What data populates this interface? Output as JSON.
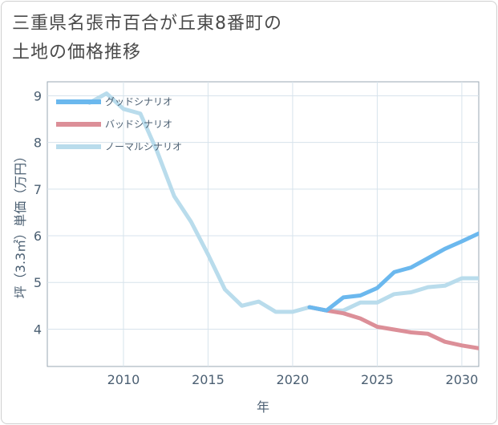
{
  "title": {
    "line1": "三重県名張市百合が丘東8番町の",
    "line2": "土地の価格推移"
  },
  "chart_data": {
    "type": "line",
    "xlabel": "年",
    "ylabel": "坪（3.3㎡）単価（万円）",
    "xlim": [
      2005.5,
      2031
    ],
    "ylim": [
      3.2,
      9.3
    ],
    "x_ticks": [
      2010,
      2015,
      2020,
      2025,
      2030
    ],
    "y_ticks": [
      4,
      5,
      6,
      7,
      8,
      9
    ],
    "grid": true,
    "legend_position": "top-left",
    "series": [
      {
        "name": "グッドシナリオ",
        "color": "#6bb8ee",
        "x": [
          2021,
          2022,
          2023,
          2024,
          2025,
          2026,
          2027,
          2028,
          2029,
          2030,
          2031
        ],
        "values": [
          4.47,
          4.4,
          4.68,
          4.72,
          4.88,
          5.22,
          5.32,
          5.52,
          5.72,
          5.88,
          6.05
        ]
      },
      {
        "name": "バッドシナリオ",
        "color": "#dc8f98",
        "x": [
          2021,
          2022,
          2023,
          2024,
          2025,
          2026,
          2027,
          2028,
          2029,
          2030,
          2031
        ],
        "values": [
          4.47,
          4.4,
          4.34,
          4.23,
          4.05,
          3.99,
          3.93,
          3.9,
          3.73,
          3.65,
          3.59
        ]
      },
      {
        "name": "ノーマルシナリオ",
        "color": "#b9dcec",
        "x": [
          2008,
          2009,
          2010,
          2011,
          2012,
          2013,
          2014,
          2015,
          2016,
          2017,
          2018,
          2019,
          2020,
          2021,
          2022,
          2023,
          2024,
          2025,
          2026,
          2027,
          2028,
          2029,
          2030,
          2031
        ],
        "values": [
          8.85,
          9.05,
          8.72,
          8.62,
          7.8,
          6.85,
          6.3,
          5.6,
          4.85,
          4.5,
          4.59,
          4.37,
          4.37,
          4.47,
          4.4,
          4.4,
          4.57,
          4.57,
          4.75,
          4.79,
          4.9,
          4.93,
          5.09,
          5.09
        ]
      }
    ]
  }
}
